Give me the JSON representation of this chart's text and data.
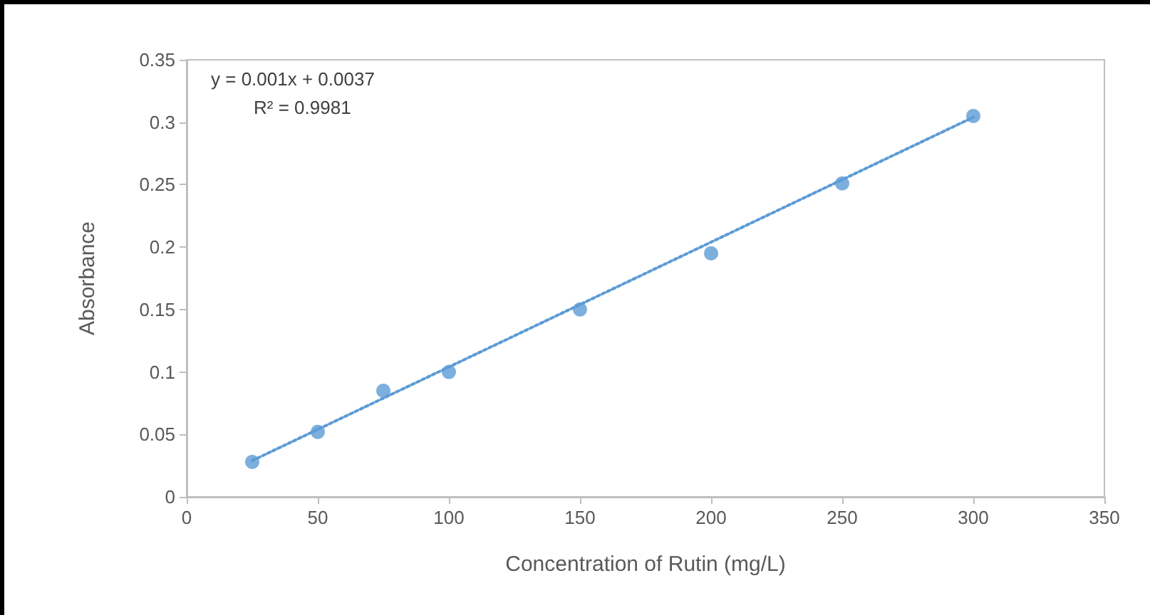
{
  "chart_data": {
    "type": "scatter",
    "xlabel": "Concentration of Rutin (mg/L)",
    "ylabel": "Absorbance",
    "annotations": [
      "y = 0.001x + 0.0037",
      "R² = 0.9981"
    ],
    "series": [
      {
        "type": "scatter",
        "color": "#5b9bd5",
        "marker": "circle",
        "x": [
          25,
          50,
          75,
          100,
          150,
          200,
          250,
          300
        ],
        "values": [
          0.028,
          0.052,
          0.085,
          0.1,
          0.15,
          0.195,
          0.251,
          0.305
        ]
      },
      {
        "type": "line",
        "color": "#5b9bd5",
        "marker": "none",
        "line_style": "dotted",
        "x": [
          25,
          300
        ],
        "values": [
          0.029,
          0.304
        ]
      }
    ],
    "xlim": [
      0,
      350
    ],
    "xticks": [
      0,
      50,
      100,
      150,
      200,
      250,
      300,
      350
    ],
    "ylim": [
      0,
      0.35
    ],
    "yticks": [
      0,
      0.05,
      0.1,
      0.15,
      0.2,
      0.25,
      0.3,
      0.35
    ],
    "grid": false
  }
}
